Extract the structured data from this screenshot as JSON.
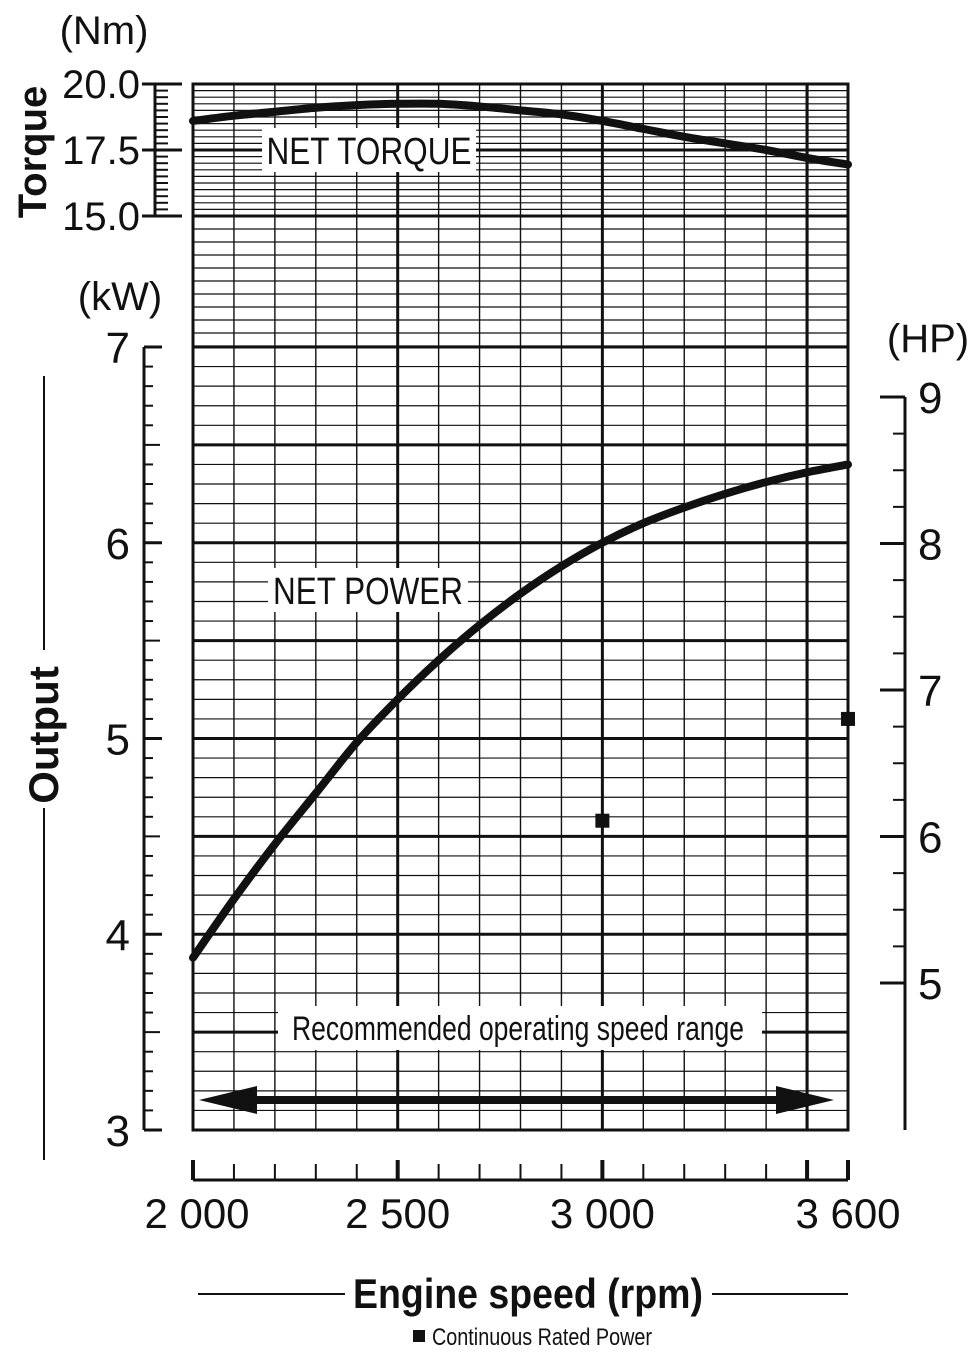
{
  "chart_data": {
    "type": "line",
    "x_axis": {
      "label": "Engine speed (rpm)",
      "range": [
        2000,
        3600
      ],
      "ticks": [
        2000,
        2500,
        3000,
        3600
      ],
      "tick_labels": [
        "2 000",
        "2 500",
        "3 000",
        "3 600"
      ]
    },
    "torque_axis": {
      "title": "Torque",
      "unit": "(Nm)",
      "range": [
        15.0,
        20.0
      ],
      "tick_labels": [
        "20.0",
        "17.5",
        "15.0"
      ],
      "tick_values": [
        20.0,
        17.5,
        15.0
      ]
    },
    "output_axis": {
      "title": "Output",
      "unit": "(kW)",
      "range": [
        3,
        7
      ],
      "tick_labels": [
        "7",
        "6",
        "5",
        "4",
        "3"
      ],
      "tick_values": [
        7,
        6,
        5,
        4,
        3
      ]
    },
    "hp_axis": {
      "unit": "(HP)",
      "tick_labels": [
        "9",
        "8",
        "7",
        "6",
        "5"
      ],
      "tick_values": [
        9,
        8,
        7,
        6,
        5
      ]
    },
    "series": [
      {
        "name": "NET TORQUE",
        "axis": "torque",
        "x": [
          2000,
          2100,
          2200,
          2300,
          2400,
          2500,
          2600,
          2700,
          2800,
          2900,
          3000,
          3100,
          3200,
          3300,
          3400,
          3500,
          3600
        ],
        "values": [
          18.6,
          18.8,
          18.95,
          19.1,
          19.2,
          19.25,
          19.25,
          19.15,
          19.0,
          18.85,
          18.6,
          18.3,
          18.0,
          17.75,
          17.5,
          17.2,
          16.95
        ]
      },
      {
        "name": "NET POWER",
        "axis": "output",
        "x": [
          2000,
          2100,
          2200,
          2300,
          2400,
          2500,
          2600,
          2700,
          2800,
          2900,
          3000,
          3100,
          3200,
          3300,
          3400,
          3500,
          3600
        ],
        "values": [
          3.88,
          4.18,
          4.46,
          4.72,
          4.98,
          5.2,
          5.4,
          5.58,
          5.74,
          5.88,
          6.0,
          6.1,
          6.18,
          6.25,
          6.31,
          6.36,
          6.4
        ]
      }
    ],
    "continuous_rated_power": {
      "label": "Continuous Rated Power",
      "points": [
        {
          "x": 3000,
          "y": 4.58
        },
        {
          "x": 3600,
          "y": 5.1
        }
      ]
    },
    "operating_range": {
      "label": "Recommended operating speed range",
      "from": 2000,
      "to": 3600
    },
    "grid": true
  }
}
